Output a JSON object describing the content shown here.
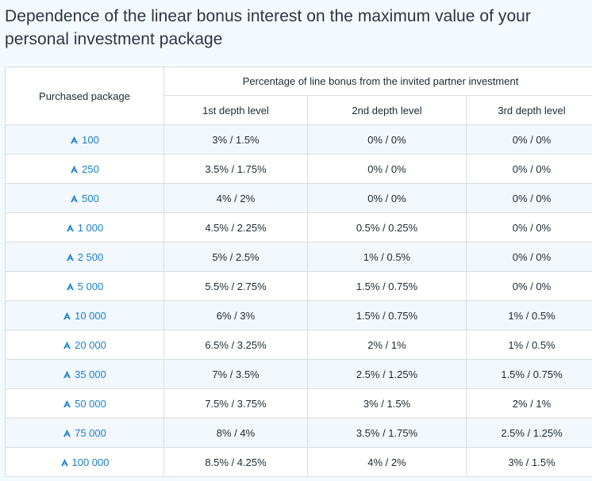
{
  "title": "Dependence of the linear bonus interest on the maximum value of your personal investment package",
  "table": {
    "header_package": "Purchased package",
    "header_percentage": "Percentage of line bonus from the invited partner investment",
    "levels": [
      "1st depth level",
      "2nd depth level",
      "3rd depth level"
    ],
    "rows": [
      {
        "package": "100",
        "l1": "3% / 1.5%",
        "l2": "0% / 0%",
        "l3": "0% / 0%"
      },
      {
        "package": "250",
        "l1": "3.5% / 1.75%",
        "l2": "0% / 0%",
        "l3": "0% / 0%"
      },
      {
        "package": "500",
        "l1": "4% / 2%",
        "l2": "0% / 0%",
        "l3": "0% / 0%"
      },
      {
        "package": "1 000",
        "l1": "4.5% / 2.25%",
        "l2": "0.5% / 0.25%",
        "l3": "0% / 0%"
      },
      {
        "package": "2 500",
        "l1": "5% / 2.5%",
        "l2": "1% / 0.5%",
        "l3": "0% / 0%"
      },
      {
        "package": "5 000",
        "l1": "5.5% / 2.75%",
        "l2": "1.5% / 0.75%",
        "l3": "0% / 0%"
      },
      {
        "package": "10 000",
        "l1": "6% / 3%",
        "l2": "1.5% / 0.75%",
        "l3": "1% / 0.5%"
      },
      {
        "package": "20 000",
        "l1": "6.5% / 3.25%",
        "l2": "2% / 1%",
        "l3": "1% / 0.5%"
      },
      {
        "package": "35 000",
        "l1": "7% / 3.5%",
        "l2": "2.5% / 1.25%",
        "l3": "1.5% / 0.75%"
      },
      {
        "package": "50 000",
        "l1": "7.5% / 3.75%",
        "l2": "3% / 1.5%",
        "l3": "2% / 1%"
      },
      {
        "package": "75 000",
        "l1": "8% / 4%",
        "l2": "3.5% / 1.75%",
        "l3": "2.5% / 1.25%"
      },
      {
        "package": "100 000",
        "l1": "8.5% / 4.25%",
        "l2": "4% / 2%",
        "l3": "3% / 1.5%"
      }
    ]
  },
  "icon": "currency-logo-icon",
  "colors": {
    "accent": "#1b80d0",
    "row_stripe": "#f2f8fc",
    "border": "#d9dee2",
    "page_bg": "#f4fbff"
  }
}
